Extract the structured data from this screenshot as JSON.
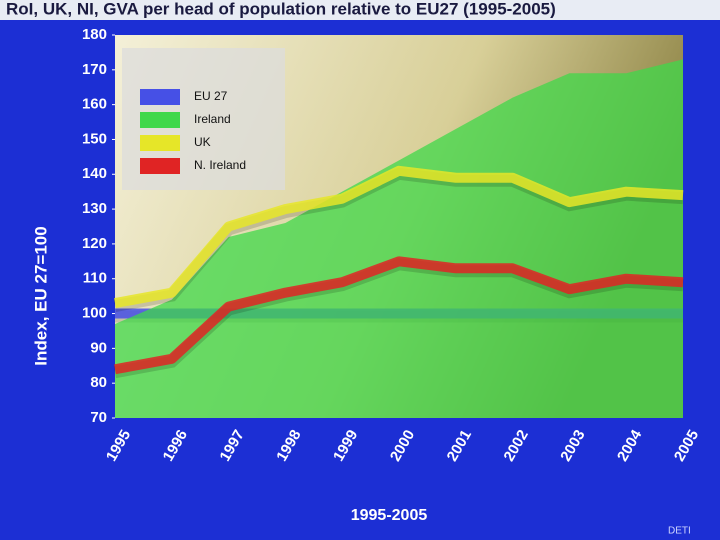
{
  "chart_data": {
    "type": "line",
    "title": "RoI, UK, NI, GVA per head of population relative to EU27 (1995-2005)",
    "y_label": "Index, EU 27=100",
    "x_label": "1995-2005",
    "footer": "DETI",
    "categories": [
      "1995",
      "1996",
      "1997",
      "1998",
      "1999",
      "2000",
      "2001",
      "2002",
      "2003",
      "2004",
      "2005"
    ],
    "ylim": [
      70,
      180
    ],
    "yticks": [
      70,
      80,
      90,
      100,
      110,
      120,
      130,
      140,
      150,
      160,
      170,
      180
    ],
    "legend": "top-left",
    "series": [
      {
        "name": "EU 27",
        "color": "#4650e6",
        "values": [
          100,
          100,
          100,
          100,
          100,
          100,
          100,
          100,
          100,
          100,
          100
        ]
      },
      {
        "name": "Ireland",
        "color": "#3fd84a",
        "fill": true,
        "values": [
          97,
          104,
          122,
          126,
          135,
          144,
          153,
          162,
          169,
          169,
          173
        ]
      },
      {
        "name": "UK",
        "color": "#e6e628",
        "values": [
          103,
          106,
          125,
          130,
          133,
          141,
          139,
          139,
          132,
          135,
          134
        ]
      },
      {
        "name": "N. Ireland",
        "color": "#e02424",
        "values": [
          84,
          87,
          102,
          106,
          109,
          115,
          113,
          113,
          107,
          110,
          109
        ]
      }
    ]
  }
}
